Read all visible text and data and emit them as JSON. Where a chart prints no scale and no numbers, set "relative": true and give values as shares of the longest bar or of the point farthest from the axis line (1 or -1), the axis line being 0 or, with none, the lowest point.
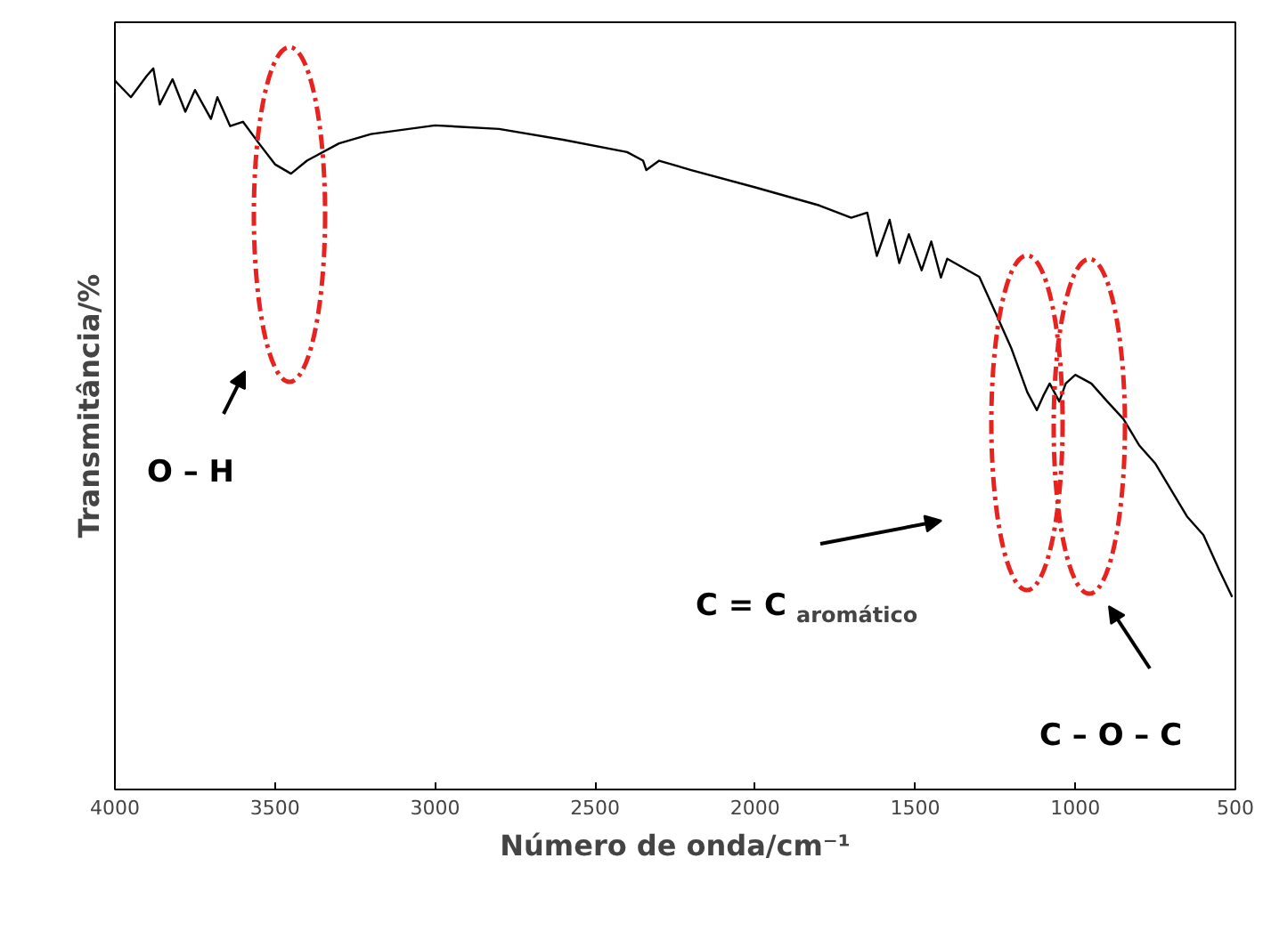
{
  "chart_data": {
    "type": "line",
    "relative": true,
    "xlabel": "Número de onda/cm⁻¹",
    "ylabel": "Transmitância/%",
    "xlim": [
      4000,
      500
    ],
    "xticks": [
      4000,
      3500,
      3000,
      2500,
      2000,
      1500,
      1000,
      500
    ],
    "grid": false,
    "x": [
      4000,
      3950,
      3900,
      3880,
      3860,
      3820,
      3780,
      3750,
      3700,
      3680,
      3640,
      3600,
      3550,
      3500,
      3450,
      3400,
      3300,
      3200,
      3000,
      2800,
      2600,
      2400,
      2350,
      2340,
      2300,
      2200,
      2000,
      1800,
      1700,
      1650,
      1620,
      1580,
      1550,
      1520,
      1480,
      1450,
      1420,
      1400,
      1300,
      1250,
      1200,
      1150,
      1120,
      1100,
      1080,
      1050,
      1030,
      1000,
      950,
      900,
      850,
      800,
      750,
      700,
      650,
      600,
      550,
      510
    ],
    "series": [
      {
        "color": "#000000",
        "values": [
          0.983,
          0.96,
          0.99,
          1.0,
          0.95,
          0.985,
          0.94,
          0.97,
          0.93,
          0.96,
          0.92,
          0.926,
          0.896,
          0.867,
          0.854,
          0.872,
          0.896,
          0.909,
          0.921,
          0.916,
          0.901,
          0.884,
          0.872,
          0.859,
          0.872,
          0.859,
          0.835,
          0.81,
          0.793,
          0.8,
          0.74,
          0.79,
          0.73,
          0.77,
          0.72,
          0.76,
          0.71,
          0.736,
          0.711,
          0.662,
          0.612,
          0.551,
          0.526,
          0.546,
          0.563,
          0.538,
          0.563,
          0.575,
          0.563,
          0.538,
          0.514,
          0.477,
          0.452,
          0.415,
          0.378,
          0.353,
          0.304,
          0.267
        ]
      }
    ],
    "annotations": [
      "O – H",
      "C = C$_{aromático}$",
      "C – O – C"
    ]
  }
}
